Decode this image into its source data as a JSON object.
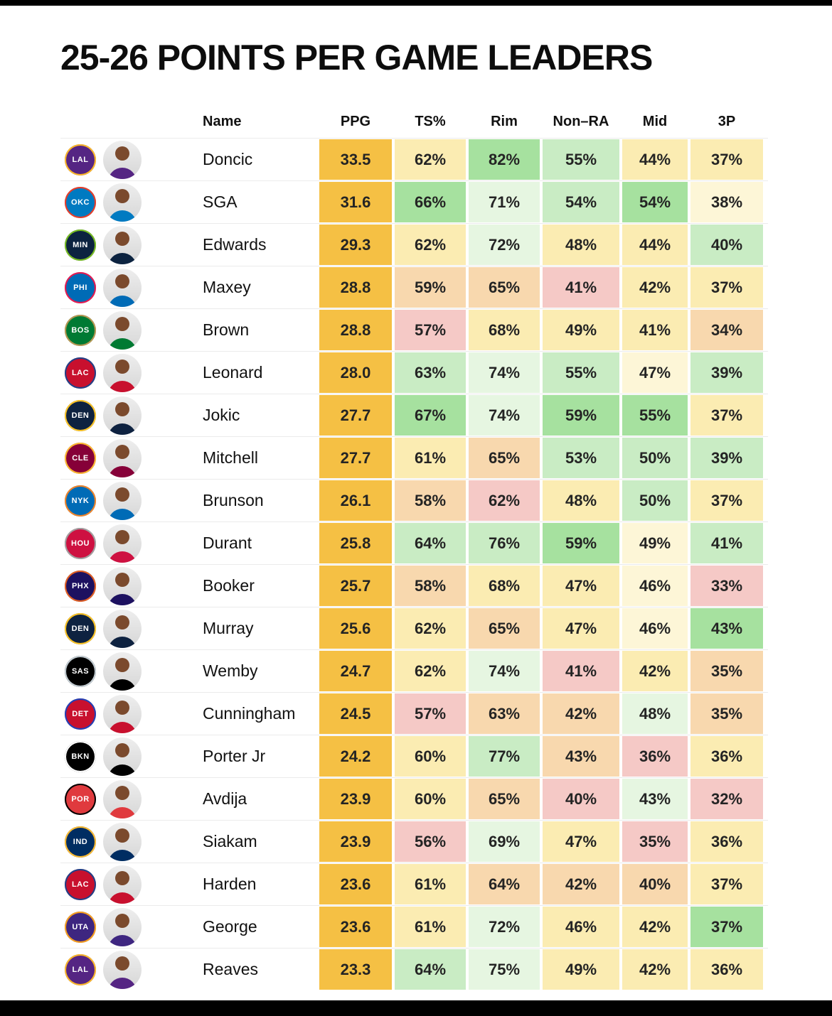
{
  "palette": {
    "amber": "#f5c044",
    "G": "#a6e19f",
    "g": "#c9ecc4",
    "gg": "#e6f6e1",
    "y": "#fbecb2",
    "yl": "#fdf6d7",
    "o": "#f8d8ae",
    "p": "#f5c9c6"
  },
  "chart_data": {
    "type": "table",
    "title": "25-26 POINTS PER GAME LEADERS",
    "columns": [
      "Name",
      "PPG",
      "TS%",
      "Rim",
      "Non–RA",
      "Mid",
      "3P"
    ],
    "teams": {
      "LAL": {
        "primary": "#552583",
        "secondary": "#FDB927"
      },
      "OKC": {
        "primary": "#007AC1",
        "secondary": "#EF3B24"
      },
      "MIN": {
        "primary": "#0C2340",
        "secondary": "#78BE20"
      },
      "PHI": {
        "primary": "#006BB6",
        "secondary": "#ED174C"
      },
      "BOS": {
        "primary": "#007A33",
        "secondary": "#BA9653"
      },
      "LAC": {
        "primary": "#C8102E",
        "secondary": "#1D428A"
      },
      "DEN": {
        "primary": "#0E2240",
        "secondary": "#FEC524"
      },
      "CLE": {
        "primary": "#860038",
        "secondary": "#FDBB30"
      },
      "NYK": {
        "primary": "#006BB6",
        "secondary": "#F58426"
      },
      "HOU": {
        "primary": "#CE1141",
        "secondary": "#9EA2A2"
      },
      "PHX": {
        "primary": "#1D1160",
        "secondary": "#E56020"
      },
      "SAS": {
        "primary": "#000000",
        "secondary": "#C4CED4"
      },
      "DET": {
        "primary": "#C8102E",
        "secondary": "#1D42BA"
      },
      "BKN": {
        "primary": "#000000",
        "secondary": "#FFFFFF"
      },
      "POR": {
        "primary": "#E03A3E",
        "secondary": "#000000"
      },
      "IND": {
        "primary": "#002D62",
        "secondary": "#FDBB30"
      },
      "UTA": {
        "primary": "#3E2680",
        "secondary": "#F9A01B"
      }
    },
    "rows": [
      {
        "name": "Doncic",
        "team": "LAL",
        "ppg": "33.5",
        "stats": [
          {
            "v": "62%",
            "c": "y"
          },
          {
            "v": "82%",
            "c": "G"
          },
          {
            "v": "55%",
            "c": "g"
          },
          {
            "v": "44%",
            "c": "y"
          },
          {
            "v": "37%",
            "c": "y"
          }
        ]
      },
      {
        "name": "SGA",
        "team": "OKC",
        "ppg": "31.6",
        "stats": [
          {
            "v": "66%",
            "c": "G"
          },
          {
            "v": "71%",
            "c": "gg"
          },
          {
            "v": "54%",
            "c": "g"
          },
          {
            "v": "54%",
            "c": "G"
          },
          {
            "v": "38%",
            "c": "yl"
          }
        ]
      },
      {
        "name": "Edwards",
        "team": "MIN",
        "ppg": "29.3",
        "stats": [
          {
            "v": "62%",
            "c": "y"
          },
          {
            "v": "72%",
            "c": "gg"
          },
          {
            "v": "48%",
            "c": "y"
          },
          {
            "v": "44%",
            "c": "y"
          },
          {
            "v": "40%",
            "c": "g"
          }
        ]
      },
      {
        "name": "Maxey",
        "team": "PHI",
        "ppg": "28.8",
        "stats": [
          {
            "v": "59%",
            "c": "o"
          },
          {
            "v": "65%",
            "c": "o"
          },
          {
            "v": "41%",
            "c": "p"
          },
          {
            "v": "42%",
            "c": "y"
          },
          {
            "v": "37%",
            "c": "y"
          }
        ]
      },
      {
        "name": "Brown",
        "team": "BOS",
        "ppg": "28.8",
        "stats": [
          {
            "v": "57%",
            "c": "p"
          },
          {
            "v": "68%",
            "c": "y"
          },
          {
            "v": "49%",
            "c": "y"
          },
          {
            "v": "41%",
            "c": "y"
          },
          {
            "v": "34%",
            "c": "o"
          }
        ]
      },
      {
        "name": "Leonard",
        "team": "LAC",
        "ppg": "28.0",
        "stats": [
          {
            "v": "63%",
            "c": "g"
          },
          {
            "v": "74%",
            "c": "gg"
          },
          {
            "v": "55%",
            "c": "g"
          },
          {
            "v": "47%",
            "c": "yl"
          },
          {
            "v": "39%",
            "c": "g"
          }
        ]
      },
      {
        "name": "Jokic",
        "team": "DEN",
        "ppg": "27.7",
        "stats": [
          {
            "v": "67%",
            "c": "G"
          },
          {
            "v": "74%",
            "c": "gg"
          },
          {
            "v": "59%",
            "c": "G"
          },
          {
            "v": "55%",
            "c": "G"
          },
          {
            "v": "37%",
            "c": "y"
          }
        ]
      },
      {
        "name": "Mitchell",
        "team": "CLE",
        "ppg": "27.7",
        "stats": [
          {
            "v": "61%",
            "c": "y"
          },
          {
            "v": "65%",
            "c": "o"
          },
          {
            "v": "53%",
            "c": "g"
          },
          {
            "v": "50%",
            "c": "g"
          },
          {
            "v": "39%",
            "c": "g"
          }
        ]
      },
      {
        "name": "Brunson",
        "team": "NYK",
        "ppg": "26.1",
        "stats": [
          {
            "v": "58%",
            "c": "o"
          },
          {
            "v": "62%",
            "c": "p"
          },
          {
            "v": "48%",
            "c": "y"
          },
          {
            "v": "50%",
            "c": "g"
          },
          {
            "v": "37%",
            "c": "y"
          }
        ]
      },
      {
        "name": "Durant",
        "team": "HOU",
        "ppg": "25.8",
        "stats": [
          {
            "v": "64%",
            "c": "g"
          },
          {
            "v": "76%",
            "c": "g"
          },
          {
            "v": "59%",
            "c": "G"
          },
          {
            "v": "49%",
            "c": "yl"
          },
          {
            "v": "41%",
            "c": "g"
          }
        ]
      },
      {
        "name": "Booker",
        "team": "PHX",
        "ppg": "25.7",
        "stats": [
          {
            "v": "58%",
            "c": "o"
          },
          {
            "v": "68%",
            "c": "y"
          },
          {
            "v": "47%",
            "c": "y"
          },
          {
            "v": "46%",
            "c": "yl"
          },
          {
            "v": "33%",
            "c": "p"
          }
        ]
      },
      {
        "name": "Murray",
        "team": "DEN",
        "ppg": "25.6",
        "stats": [
          {
            "v": "62%",
            "c": "y"
          },
          {
            "v": "65%",
            "c": "o"
          },
          {
            "v": "47%",
            "c": "y"
          },
          {
            "v": "46%",
            "c": "yl"
          },
          {
            "v": "43%",
            "c": "G"
          }
        ]
      },
      {
        "name": "Wemby",
        "team": "SAS",
        "ppg": "24.7",
        "stats": [
          {
            "v": "62%",
            "c": "y"
          },
          {
            "v": "74%",
            "c": "gg"
          },
          {
            "v": "41%",
            "c": "p"
          },
          {
            "v": "42%",
            "c": "y"
          },
          {
            "v": "35%",
            "c": "o"
          }
        ]
      },
      {
        "name": "Cunningham",
        "team": "DET",
        "ppg": "24.5",
        "stats": [
          {
            "v": "57%",
            "c": "p"
          },
          {
            "v": "63%",
            "c": "o"
          },
          {
            "v": "42%",
            "c": "o"
          },
          {
            "v": "48%",
            "c": "gg"
          },
          {
            "v": "35%",
            "c": "o"
          }
        ]
      },
      {
        "name": "Porter Jr",
        "team": "BKN",
        "ppg": "24.2",
        "stats": [
          {
            "v": "60%",
            "c": "y"
          },
          {
            "v": "77%",
            "c": "g"
          },
          {
            "v": "43%",
            "c": "o"
          },
          {
            "v": "36%",
            "c": "p"
          },
          {
            "v": "36%",
            "c": "y"
          }
        ]
      },
      {
        "name": "Avdija",
        "team": "POR",
        "ppg": "23.9",
        "stats": [
          {
            "v": "60%",
            "c": "y"
          },
          {
            "v": "65%",
            "c": "o"
          },
          {
            "v": "40%",
            "c": "p"
          },
          {
            "v": "43%",
            "c": "gg"
          },
          {
            "v": "32%",
            "c": "p"
          }
        ]
      },
      {
        "name": "Siakam",
        "team": "IND",
        "ppg": "23.9",
        "stats": [
          {
            "v": "56%",
            "c": "p"
          },
          {
            "v": "69%",
            "c": "gg"
          },
          {
            "v": "47%",
            "c": "y"
          },
          {
            "v": "35%",
            "c": "p"
          },
          {
            "v": "36%",
            "c": "y"
          }
        ]
      },
      {
        "name": "Harden",
        "team": "LAC",
        "ppg": "23.6",
        "stats": [
          {
            "v": "61%",
            "c": "y"
          },
          {
            "v": "64%",
            "c": "o"
          },
          {
            "v": "42%",
            "c": "o"
          },
          {
            "v": "40%",
            "c": "o"
          },
          {
            "v": "37%",
            "c": "y"
          }
        ]
      },
      {
        "name": "George",
        "team": "UTA",
        "ppg": "23.6",
        "stats": [
          {
            "v": "61%",
            "c": "y"
          },
          {
            "v": "72%",
            "c": "gg"
          },
          {
            "v": "46%",
            "c": "y"
          },
          {
            "v": "42%",
            "c": "y"
          },
          {
            "v": "37%",
            "c": "G"
          }
        ]
      },
      {
        "name": "Reaves",
        "team": "LAL",
        "ppg": "23.3",
        "stats": [
          {
            "v": "64%",
            "c": "g"
          },
          {
            "v": "75%",
            "c": "gg"
          },
          {
            "v": "49%",
            "c": "y"
          },
          {
            "v": "42%",
            "c": "y"
          },
          {
            "v": "36%",
            "c": "y"
          }
        ]
      }
    ]
  }
}
